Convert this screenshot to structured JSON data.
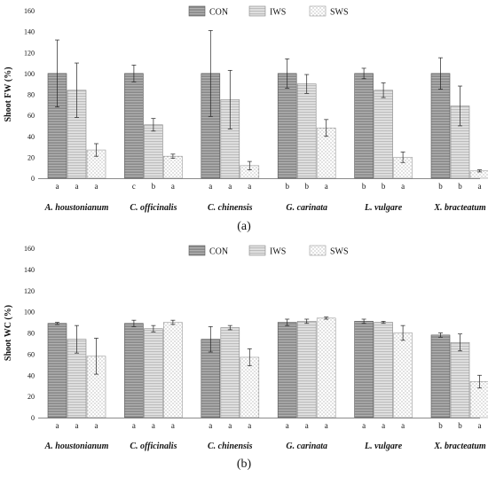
{
  "legend": [
    "CON",
    "IWS",
    "SWS"
  ],
  "chart_data": [
    {
      "type": "bar",
      "ylabel": "Shoot FW (%)",
      "ylim": [
        0,
        160
      ],
      "yticks": [
        0,
        20,
        40,
        60,
        80,
        100,
        120,
        140,
        160
      ],
      "categories": [
        "A. houstonianum",
        "C. officinalis",
        "C. chinensis",
        "G. carinata",
        "L. vulgare",
        "X. bracteatum"
      ],
      "series": [
        {
          "name": "CON",
          "values": [
            100,
            100,
            100,
            100,
            100,
            100
          ],
          "errors": [
            32,
            8,
            41,
            14,
            5,
            15
          ]
        },
        {
          "name": "IWS",
          "values": [
            84,
            51,
            75,
            90,
            84,
            69
          ],
          "errors": [
            26,
            6,
            28,
            9,
            7,
            19
          ]
        },
        {
          "name": "SWS",
          "values": [
            27,
            21,
            12,
            48,
            20,
            7
          ],
          "errors": [
            6,
            2,
            4,
            8,
            5,
            1
          ]
        }
      ],
      "significance": [
        [
          "a",
          "a",
          "a"
        ],
        [
          "c",
          "b",
          "a"
        ],
        [
          "a",
          "a",
          "a"
        ],
        [
          "b",
          "b",
          "a"
        ],
        [
          "b",
          "b",
          "a"
        ],
        [
          "b",
          "b",
          "a"
        ]
      ],
      "panel_label": "(a)"
    },
    {
      "type": "bar",
      "ylabel": "Shoot WC (%)",
      "ylim": [
        0,
        160
      ],
      "yticks": [
        0,
        20,
        40,
        60,
        80,
        100,
        120,
        140,
        160
      ],
      "categories": [
        "A. houstonianum",
        "C. officinalis",
        "C. chinensis",
        "G. carinata",
        "L. vulgare",
        "X. bracteatum"
      ],
      "series": [
        {
          "name": "CON",
          "values": [
            89,
            89,
            74,
            90,
            91,
            78
          ],
          "errors": [
            1,
            3,
            12,
            3,
            2,
            2
          ]
        },
        {
          "name": "IWS",
          "values": [
            74,
            84,
            85,
            91,
            90,
            71
          ],
          "errors": [
            13,
            3,
            2,
            2,
            1,
            8
          ]
        },
        {
          "name": "SWS",
          "values": [
            58,
            90,
            57,
            94,
            80,
            34
          ],
          "errors": [
            17,
            2,
            8,
            1,
            7,
            6
          ]
        }
      ],
      "significance": [
        [
          "a",
          "a",
          "a"
        ],
        [
          "a",
          "a",
          "a"
        ],
        [
          "a",
          "a",
          "a"
        ],
        [
          "a",
          "a",
          "a"
        ],
        [
          "a",
          "a",
          "a"
        ],
        [
          "b",
          "b",
          "a"
        ]
      ],
      "panel_label": "(b)"
    }
  ]
}
